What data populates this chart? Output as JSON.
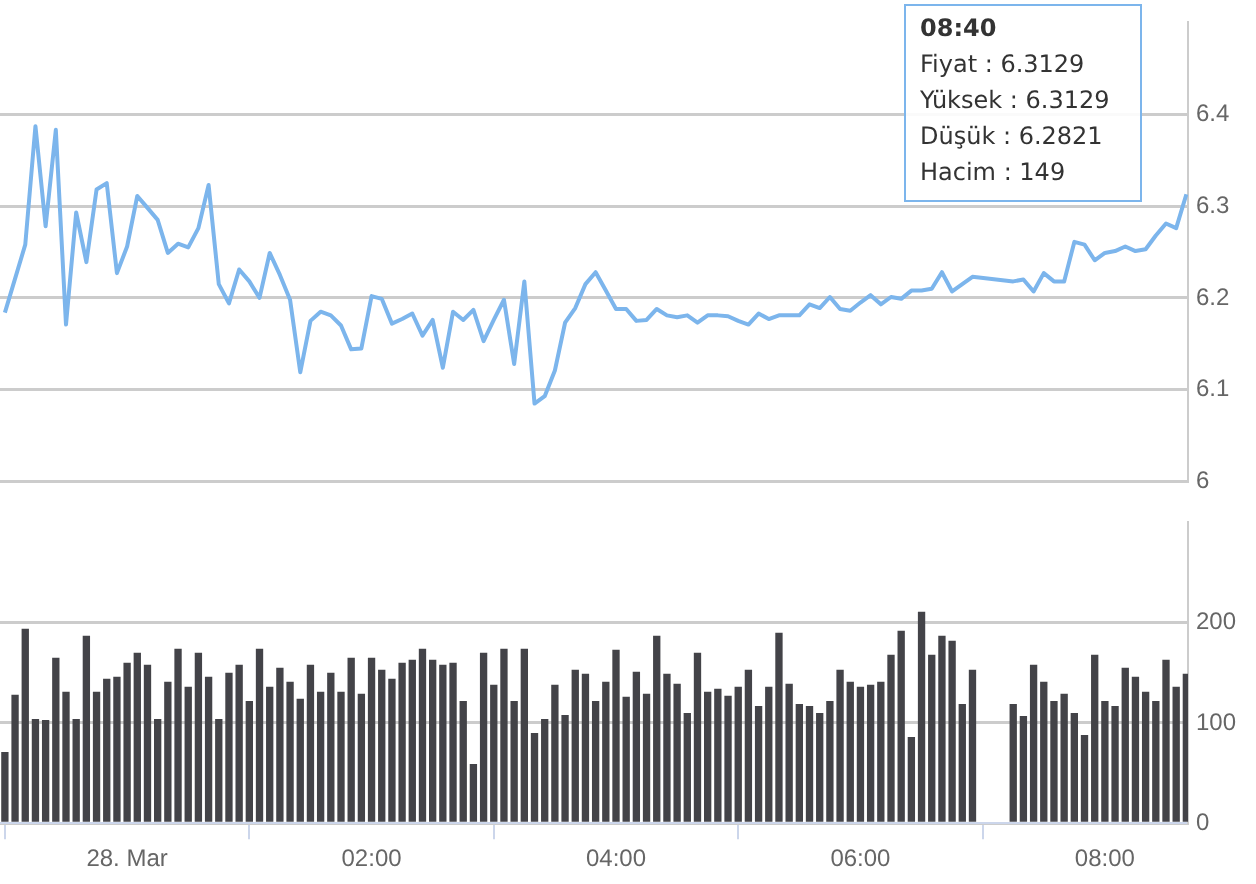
{
  "chart_data": [
    {
      "type": "line",
      "color": "#7cb5ec",
      "xlim": [
        -1.04,
        8.68
      ],
      "ylim": [
        6,
        6.5
      ],
      "yticks": [
        6,
        6.1,
        6.2,
        6.3,
        6.4
      ],
      "grid": "y",
      "tick_labels": "y",
      "marker": "none",
      "x": [
        -1,
        -0.9167,
        -0.8333,
        -0.75,
        -0.6667,
        -0.5833,
        -0.5,
        -0.4167,
        -0.3333,
        -0.25,
        -0.1667,
        -0.0833,
        0,
        0.0833,
        0.1667,
        0.25,
        0.3333,
        0.4167,
        0.5,
        0.5833,
        0.6667,
        0.75,
        0.8333,
        0.9167,
        1,
        1.0833,
        1.1667,
        1.25,
        1.3333,
        1.4167,
        1.5,
        1.5833,
        1.6667,
        1.75,
        1.8333,
        1.9167,
        2,
        2.0833,
        2.1667,
        2.25,
        2.3333,
        2.4167,
        2.5,
        2.5833,
        2.6667,
        2.75,
        2.8333,
        2.9167,
        3,
        3.0833,
        3.1667,
        3.25,
        3.3333,
        3.4167,
        3.5,
        3.5833,
        3.6667,
        3.75,
        3.8333,
        3.9167,
        4,
        4.0833,
        4.1667,
        4.25,
        4.3333,
        4.4167,
        4.5,
        4.5833,
        4.6667,
        4.75,
        4.8333,
        4.9167,
        5,
        5.0833,
        5.1667,
        5.25,
        5.3333,
        5.4167,
        5.5,
        5.5833,
        5.6667,
        5.75,
        5.8333,
        5.9167,
        6,
        6.0833,
        6.1667,
        6.25,
        6.3333,
        6.4167,
        6.5,
        6.5833,
        6.6667,
        6.75,
        6.8333,
        6.9167,
        7.25,
        7.3333,
        7.4167,
        7.5,
        7.5833,
        7.6667,
        7.75,
        7.8333,
        7.9167,
        8,
        8.0833,
        8.1667,
        8.25,
        8.3333,
        8.4167,
        8.5,
        8.5833,
        8.6667
      ],
      "values": [
        6.184,
        6.221,
        6.258,
        6.387,
        6.278,
        6.383,
        6.171,
        6.293,
        6.239,
        6.318,
        6.325,
        6.227,
        6.256,
        6.311,
        6.298,
        6.285,
        6.249,
        6.259,
        6.255,
        6.276,
        6.323,
        6.215,
        6.194,
        6.231,
        6.218,
        6.2,
        6.249,
        6.225,
        6.198,
        6.119,
        6.175,
        6.185,
        6.181,
        6.17,
        6.144,
        6.145,
        6.202,
        6.199,
        6.172,
        6.177,
        6.183,
        6.159,
        6.176,
        6.124,
        6.185,
        6.176,
        6.187,
        6.153,
        6.176,
        6.198,
        6.128,
        6.218,
        6.085,
        6.093,
        6.121,
        6.173,
        6.189,
        6.215,
        6.228,
        6.208,
        6.188,
        6.188,
        6.175,
        6.176,
        6.188,
        6.181,
        6.179,
        6.181,
        6.173,
        6.181,
        6.181,
        6.18,
        6.175,
        6.171,
        6.183,
        6.177,
        6.181,
        6.181,
        6.181,
        6.193,
        6.189,
        6.201,
        6.188,
        6.186,
        6.195,
        6.203,
        6.193,
        6.201,
        6.199,
        6.208,
        6.208,
        6.21,
        6.228,
        6.207,
        6.215,
        6.223,
        6.218,
        6.22,
        6.207,
        6.227,
        6.218,
        6.218,
        6.261,
        6.258,
        6.241,
        6.249,
        6.251,
        6.256,
        6.251,
        6.253,
        6.268,
        6.281,
        6.276,
        6.3129
      ],
      "annotations": [
        "08:40",
        "Fiyat : 6.3129",
        "Yüksek : 6.3129",
        "Düşük : 6.2821",
        "Hacim : 149"
      ]
    },
    {
      "type": "bar",
      "color": "#434348",
      "xlim": [
        -1.04,
        8.68
      ],
      "xticks": [
        {
          "value": 0,
          "label": "28. Mar"
        },
        {
          "value": 2,
          "label": "02:00"
        },
        {
          "value": 4,
          "label": "04:00"
        },
        {
          "value": 6,
          "label": "06:00"
        },
        {
          "value": 8,
          "label": "08:00"
        }
      ],
      "ylim": [
        0,
        300
      ],
      "yticks": [
        0,
        100,
        200
      ],
      "grid": "y",
      "x": [
        -1,
        -0.9167,
        -0.8333,
        -0.75,
        -0.6667,
        -0.5833,
        -0.5,
        -0.4167,
        -0.3333,
        -0.25,
        -0.1667,
        -0.0833,
        0,
        0.0833,
        0.1667,
        0.25,
        0.3333,
        0.4167,
        0.5,
        0.5833,
        0.6667,
        0.75,
        0.8333,
        0.9167,
        1,
        1.0833,
        1.1667,
        1.25,
        1.3333,
        1.4167,
        1.5,
        1.5833,
        1.6667,
        1.75,
        1.8333,
        1.9167,
        2,
        2.0833,
        2.1667,
        2.25,
        2.3333,
        2.4167,
        2.5,
        2.5833,
        2.6667,
        2.75,
        2.8333,
        2.9167,
        3,
        3.0833,
        3.1667,
        3.25,
        3.3333,
        3.4167,
        3.5,
        3.5833,
        3.6667,
        3.75,
        3.8333,
        3.9167,
        4,
        4.0833,
        4.1667,
        4.25,
        4.3333,
        4.4167,
        4.5,
        4.5833,
        4.6667,
        4.75,
        4.8333,
        4.9167,
        5,
        5.0833,
        5.1667,
        5.25,
        5.3333,
        5.4167,
        5.5,
        5.5833,
        5.6667,
        5.75,
        5.8333,
        5.9167,
        6,
        6.0833,
        6.1667,
        6.25,
        6.3333,
        6.4167,
        6.5,
        6.5833,
        6.6667,
        6.75,
        6.8333,
        6.9167,
        7.25,
        7.3333,
        7.4167,
        7.5,
        7.5833,
        7.6667,
        7.75,
        7.8333,
        7.9167,
        8,
        8.0833,
        8.1667,
        8.25,
        8.3333,
        8.4167,
        8.5,
        8.5833,
        8.6667
      ],
      "values": [
        71,
        128,
        194,
        104,
        103,
        165,
        131,
        104,
        187,
        131,
        144,
        146,
        160,
        170,
        158,
        104,
        141,
        174,
        136,
        170,
        146,
        104,
        150,
        158,
        122,
        174,
        136,
        155,
        141,
        124,
        158,
        131,
        150,
        131,
        165,
        129,
        165,
        153,
        144,
        160,
        163,
        174,
        163,
        158,
        160,
        122,
        59,
        170,
        138,
        174,
        122,
        174,
        90,
        104,
        138,
        108,
        153,
        149,
        122,
        141,
        173,
        126,
        151,
        129,
        187,
        149,
        139,
        110,
        170,
        131,
        134,
        127,
        136,
        153,
        117,
        136,
        190,
        139,
        119,
        117,
        110,
        122,
        153,
        141,
        136,
        138,
        141,
        168,
        192,
        86,
        211,
        168,
        187,
        182,
        119,
        153,
        119,
        107,
        158,
        141,
        122,
        129,
        110,
        88,
        168,
        122,
        117,
        155,
        146,
        131,
        122,
        163,
        136,
        149
      ]
    }
  ]
}
